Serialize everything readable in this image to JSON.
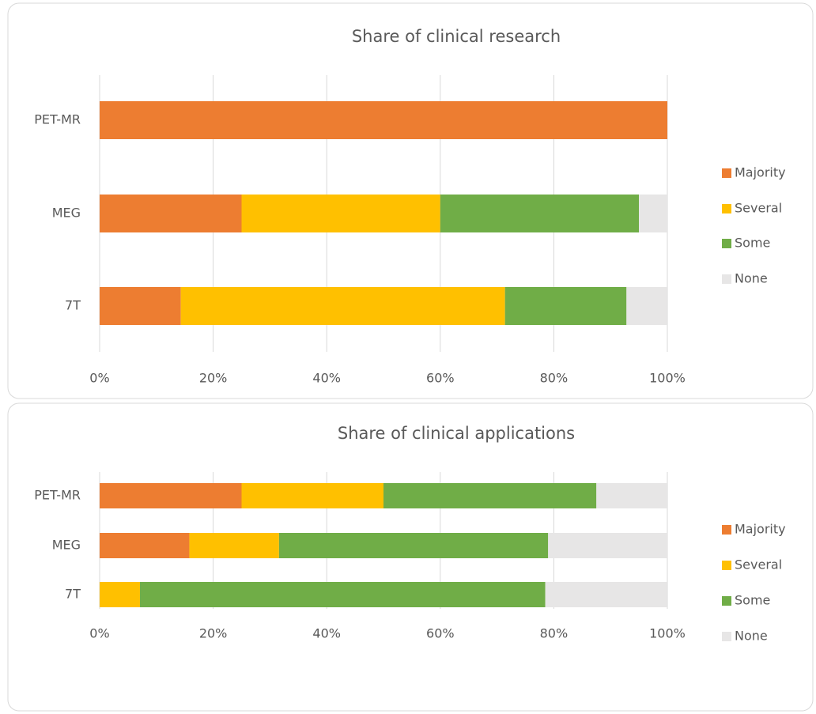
{
  "chart_data": [
    {
      "type": "stacked-bar-horizontal",
      "title": "Share of clinical research",
      "categories": [
        "PET-MR",
        "MEG",
        "7T"
      ],
      "series": [
        {
          "name": "Majority",
          "color": "#ED7D31",
          "values": [
            100,
            25,
            14.3
          ]
        },
        {
          "name": "Several",
          "color": "#FFC000",
          "values": [
            0,
            35,
            57.1
          ]
        },
        {
          "name": "Some",
          "color": "#70AD47",
          "values": [
            0,
            35,
            21.4
          ]
        },
        {
          "name": "None",
          "color": "#E7E6E6",
          "values": [
            0,
            5,
            7.1
          ]
        }
      ],
      "xlim": [
        0,
        100
      ],
      "xticks": [
        {
          "value": 0,
          "label": "0%"
        },
        {
          "value": 20,
          "label": "20%"
        },
        {
          "value": 40,
          "label": "40%"
        },
        {
          "value": 60,
          "label": "60%"
        },
        {
          "value": 80,
          "label": "80%"
        },
        {
          "value": 100,
          "label": "100%"
        }
      ],
      "grid": true,
      "legend": "right"
    },
    {
      "type": "stacked-bar-horizontal",
      "title": "Share of clinical applications",
      "categories": [
        "PET-MR",
        "MEG",
        "7T"
      ],
      "series": [
        {
          "name": "Majority",
          "color": "#ED7D31",
          "values": [
            25,
            15.8,
            0
          ]
        },
        {
          "name": "Several",
          "color": "#FFC000",
          "values": [
            25,
            15.8,
            7.1
          ]
        },
        {
          "name": "Some",
          "color": "#70AD47",
          "values": [
            37.5,
            47.4,
            71.4
          ]
        },
        {
          "name": "None",
          "color": "#E7E6E6",
          "values": [
            12.5,
            21.1,
            21.4
          ]
        }
      ],
      "xlim": [
        0,
        100
      ],
      "xticks": [
        {
          "value": 0,
          "label": "0%"
        },
        {
          "value": 20,
          "label": "20%"
        },
        {
          "value": 40,
          "label": "40%"
        },
        {
          "value": 60,
          "label": "60%"
        },
        {
          "value": 80,
          "label": "80%"
        },
        {
          "value": 100,
          "label": "100%"
        }
      ],
      "grid": true,
      "legend": "right"
    }
  ]
}
